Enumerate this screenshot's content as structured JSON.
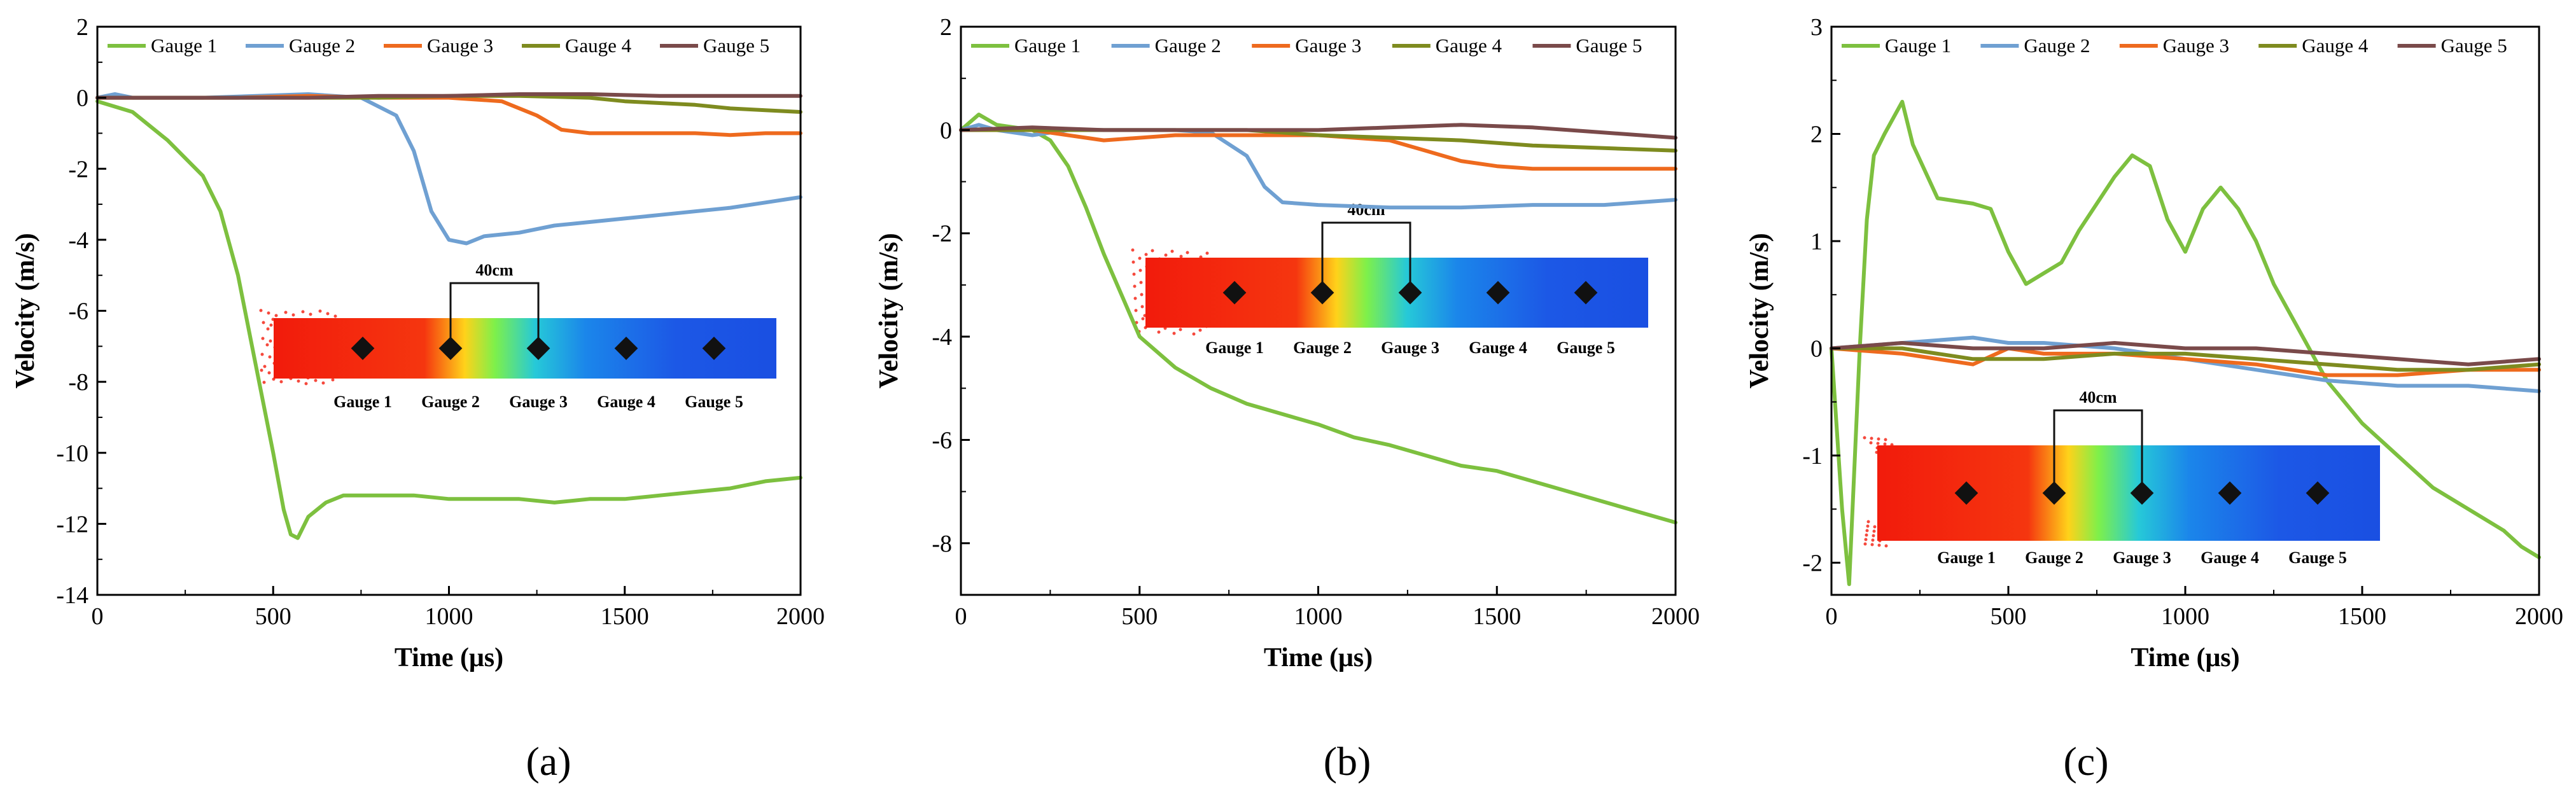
{
  "panel_labels": [
    "(a)",
    "(b)",
    "(c)"
  ],
  "colors": {
    "g1": "#7DC03F",
    "g2": "#6FA0D2",
    "g3": "#EE6A1E",
    "g4": "#7E8B1F",
    "g5": "#7A4A4A"
  },
  "chart_data": [
    {
      "type": "line",
      "panel": "(a)",
      "xlabel": "Time (μs)",
      "ylabel": "Velocity (m/s)",
      "xlim": [
        0,
        2000
      ],
      "ylim": [
        -14,
        2
      ],
      "xticks": [
        0,
        500,
        1000,
        1500,
        2000
      ],
      "yticks": [
        -14,
        -12,
        -10,
        -8,
        -6,
        -4,
        -2,
        0,
        2
      ],
      "legend": "top",
      "grid": false,
      "series": [
        {
          "name": "Gauge 1",
          "color": "#7DC03F",
          "x": [
            0,
            100,
            200,
            250,
            300,
            350,
            400,
            450,
            500,
            530,
            550,
            570,
            600,
            650,
            700,
            800,
            900,
            1000,
            1100,
            1200,
            1300,
            1400,
            1500,
            1600,
            1700,
            1800,
            1900,
            2000
          ],
          "y": [
            -0.1,
            -0.4,
            -1.2,
            -1.7,
            -2.2,
            -3.2,
            -5,
            -7.5,
            -10,
            -11.6,
            -12.3,
            -12.4,
            -11.8,
            -11.4,
            -11.2,
            -11.2,
            -11.2,
            -11.3,
            -11.3,
            -11.3,
            -11.4,
            -11.3,
            -11.3,
            -11.2,
            -11.1,
            -11,
            -10.8,
            -10.7
          ]
        },
        {
          "name": "Gauge 2",
          "color": "#6FA0D2",
          "x": [
            0,
            50,
            100,
            300,
            600,
            750,
            850,
            900,
            950,
            1000,
            1050,
            1100,
            1200,
            1300,
            1400,
            1500,
            1600,
            1700,
            1800,
            1900,
            2000
          ],
          "y": [
            0,
            0.1,
            0,
            0,
            0.1,
            0,
            -0.5,
            -1.5,
            -3.2,
            -4.0,
            -4.1,
            -3.9,
            -3.8,
            -3.6,
            -3.5,
            -3.4,
            -3.3,
            -3.2,
            -3.1,
            -2.95,
            -2.8
          ]
        },
        {
          "name": "Gauge 3",
          "color": "#EE6A1E",
          "x": [
            0,
            200,
            400,
            600,
            800,
            1000,
            1150,
            1250,
            1320,
            1400,
            1500,
            1600,
            1700,
            1800,
            1900,
            2000
          ],
          "y": [
            0,
            0,
            0,
            0.05,
            0,
            0,
            -0.1,
            -0.5,
            -0.9,
            -1.0,
            -1.0,
            -1.0,
            -1.0,
            -1.05,
            -1.0,
            -1.0
          ]
        },
        {
          "name": "Gauge 4",
          "color": "#7E8B1F",
          "x": [
            0,
            200,
            400,
            600,
            800,
            1000,
            1200,
            1400,
            1500,
            1600,
            1700,
            1800,
            1900,
            2000
          ],
          "y": [
            0,
            0,
            0,
            0,
            0,
            0.05,
            0.05,
            0,
            -0.1,
            -0.15,
            -0.2,
            -0.3,
            -0.35,
            -0.4
          ]
        },
        {
          "name": "Gauge 5",
          "color": "#7A4A4A",
          "x": [
            0,
            200,
            400,
            600,
            800,
            1000,
            1200,
            1400,
            1600,
            1800,
            2000
          ],
          "y": [
            0,
            0,
            0,
            0,
            0.05,
            0.05,
            0.1,
            0.1,
            0.05,
            0.05,
            0.05
          ]
        }
      ],
      "inset": {
        "scale_label": "40cm",
        "gauge_labels": [
          "Gauge 1",
          "Gauge 2",
          "Gauge 3",
          "Gauge 4",
          "Gauge 5"
        ]
      }
    },
    {
      "type": "line",
      "panel": "(b)",
      "xlabel": "Time (μs)",
      "ylabel": "Velocity (m/s)",
      "xlim": [
        0,
        2000
      ],
      "ylim": [
        -9,
        2
      ],
      "xticks": [
        0,
        500,
        1000,
        1500,
        2000
      ],
      "yticks": [
        -8,
        -6,
        -4,
        -2,
        0,
        2
      ],
      "legend": "top",
      "grid": false,
      "series": [
        {
          "name": "Gauge 1",
          "color": "#7DC03F",
          "x": [
            0,
            50,
            100,
            200,
            250,
            300,
            350,
            400,
            450,
            500,
            600,
            700,
            800,
            900,
            1000,
            1100,
            1200,
            1300,
            1400,
            1500,
            1600,
            1700,
            1800,
            1900,
            2000
          ],
          "y": [
            0,
            0.3,
            0.1,
            0,
            -0.2,
            -0.7,
            -1.5,
            -2.4,
            -3.2,
            -4.0,
            -4.6,
            -5.0,
            -5.3,
            -5.5,
            -5.7,
            -5.95,
            -6.1,
            -6.3,
            -6.5,
            -6.6,
            -6.8,
            -7.0,
            -7.2,
            -7.4,
            -7.6
          ]
        },
        {
          "name": "Gauge 2",
          "color": "#6FA0D2",
          "x": [
            0,
            50,
            100,
            200,
            300,
            500,
            600,
            700,
            800,
            850,
            900,
            1000,
            1200,
            1400,
            1600,
            1800,
            2000
          ],
          "y": [
            0,
            0.1,
            0,
            -0.1,
            0,
            0,
            0,
            -0.05,
            -0.5,
            -1.1,
            -1.4,
            -1.45,
            -1.5,
            -1.5,
            -1.45,
            -1.45,
            -1.35
          ]
        },
        {
          "name": "Gauge 3",
          "color": "#EE6A1E",
          "x": [
            0,
            200,
            400,
            600,
            800,
            1000,
            1200,
            1300,
            1400,
            1500,
            1600,
            1800,
            2000
          ],
          "y": [
            0,
            0,
            -0.2,
            -0.1,
            -0.1,
            -0.1,
            -0.2,
            -0.4,
            -0.6,
            -0.7,
            -0.75,
            -0.75,
            -0.75
          ]
        },
        {
          "name": "Gauge 4",
          "color": "#7E8B1F",
          "x": [
            0,
            200,
            400,
            600,
            800,
            1000,
            1200,
            1400,
            1600,
            1800,
            2000
          ],
          "y": [
            0,
            0,
            0,
            0,
            0,
            -0.1,
            -0.15,
            -0.2,
            -0.3,
            -0.35,
            -0.4
          ]
        },
        {
          "name": "Gauge 5",
          "color": "#7A4A4A",
          "x": [
            0,
            200,
            400,
            600,
            800,
            1000,
            1200,
            1400,
            1600,
            1800,
            2000
          ],
          "y": [
            0,
            0.05,
            0,
            0,
            0,
            0,
            0.05,
            0.1,
            0.05,
            -0.05,
            -0.15
          ]
        }
      ],
      "inset": {
        "scale_label": "40cm",
        "gauge_labels": [
          "Gauge 1",
          "Gauge 2",
          "Gauge 3",
          "Gauge 4",
          "Gauge 5"
        ]
      }
    },
    {
      "type": "line",
      "panel": "(c)",
      "xlabel": "Time (μs)",
      "ylabel": "Velocity (m/s)",
      "xlim": [
        0,
        2000
      ],
      "ylim": [
        -2.3,
        3
      ],
      "xticks": [
        0,
        500,
        1000,
        1500,
        2000
      ],
      "yticks": [
        -2,
        -1,
        0,
        1,
        2,
        3
      ],
      "legend": "top",
      "grid": false,
      "series": [
        {
          "name": "Gauge 1",
          "color": "#7DC03F",
          "x": [
            0,
            30,
            50,
            80,
            100,
            120,
            150,
            200,
            230,
            300,
            400,
            450,
            500,
            550,
            600,
            650,
            700,
            800,
            850,
            900,
            950,
            1000,
            1050,
            1100,
            1150,
            1200,
            1250,
            1300,
            1400,
            1500,
            1600,
            1700,
            1800,
            1900,
            1950,
            2000
          ],
          "y": [
            0,
            -1.5,
            -2.2,
            0,
            1.2,
            1.8,
            2.0,
            2.3,
            1.9,
            1.4,
            1.35,
            1.3,
            0.9,
            0.6,
            0.7,
            0.8,
            1.1,
            1.6,
            1.8,
            1.7,
            1.2,
            0.9,
            1.3,
            1.5,
            1.3,
            1.0,
            0.6,
            0.3,
            -0.3,
            -0.7,
            -1.0,
            -1.3,
            -1.5,
            -1.7,
            -1.85,
            -1.95
          ]
        },
        {
          "name": "Gauge 2",
          "color": "#6FA0D2",
          "x": [
            0,
            200,
            400,
            500,
            600,
            800,
            1000,
            1200,
            1400,
            1600,
            1800,
            2000
          ],
          "y": [
            0,
            0.05,
            0.1,
            0.05,
            0.05,
            0,
            -0.1,
            -0.2,
            -0.3,
            -0.35,
            -0.35,
            -0.4
          ]
        },
        {
          "name": "Gauge 3",
          "color": "#EE6A1E",
          "x": [
            0,
            200,
            400,
            500,
            600,
            800,
            1000,
            1200,
            1400,
            1600,
            1800,
            2000
          ],
          "y": [
            0,
            -0.05,
            -0.15,
            0,
            -0.05,
            -0.05,
            -0.1,
            -0.15,
            -0.25,
            -0.25,
            -0.2,
            -0.2
          ]
        },
        {
          "name": "Gauge 4",
          "color": "#7E8B1F",
          "x": [
            0,
            200,
            400,
            600,
            800,
            1000,
            1200,
            1400,
            1600,
            1800,
            2000
          ],
          "y": [
            0,
            0,
            -0.1,
            -0.1,
            -0.05,
            -0.05,
            -0.1,
            -0.15,
            -0.2,
            -0.2,
            -0.15
          ]
        },
        {
          "name": "Gauge 5",
          "color": "#7A4A4A",
          "x": [
            0,
            200,
            400,
            600,
            800,
            1000,
            1200,
            1400,
            1600,
            1800,
            2000
          ],
          "y": [
            0,
            0.05,
            0,
            0,
            0.05,
            0,
            0,
            -0.05,
            -0.1,
            -0.15,
            -0.1
          ]
        }
      ],
      "inset": {
        "scale_label": "40cm",
        "gauge_labels": [
          "Gauge 1",
          "Gauge 2",
          "Gauge 3",
          "Gauge 4",
          "Gauge 5"
        ]
      }
    }
  ]
}
